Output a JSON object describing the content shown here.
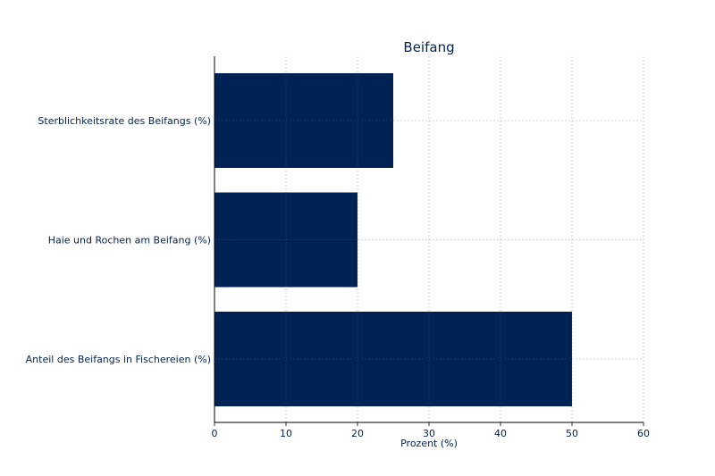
{
  "chart_data": {
    "type": "bar",
    "orientation": "horizontal",
    "title": "Beifang",
    "xlabel": "Prozent (%)",
    "ylabel": "",
    "categories": [
      "Sterblichkeitsrate des Beifangs (%)",
      "Haie und Rochen am Beifang (%)",
      "Anteil des Beifangs in Fischereien (%)"
    ],
    "values": [
      25,
      20,
      50
    ],
    "xlim": [
      0,
      60
    ],
    "xticks": [
      "0",
      "10",
      "20",
      "30",
      "40",
      "50",
      "60"
    ],
    "grid": true,
    "colors": {
      "bar": "#002255",
      "text": "#002255",
      "grid": "#d9d9d9",
      "axis": "#000000"
    }
  }
}
